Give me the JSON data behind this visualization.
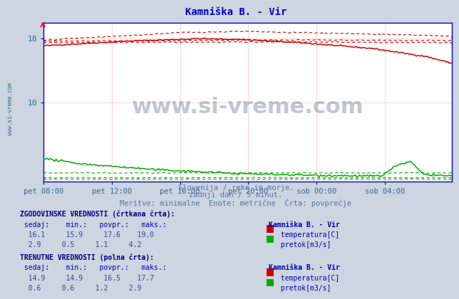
{
  "title": "Kamniška B. - Vir",
  "title_color": "#0000cc",
  "bg_color": "#ccd5e0",
  "plot_bg_color": "#ffffff",
  "subtitle1": "Slovenija / reke in morje.",
  "subtitle2": "zadnji dan / 5 minut.",
  "subtitle3": "Meritve: minimalne  Enote: metrične  Črta: povprečje",
  "subtitle_color": "#5577aa",
  "watermark": "www.si-vreme.com",
  "xticklabels": [
    "pet 08:00",
    "pet 12:00",
    "pet 16:00",
    "pet 20:00",
    "sob 00:00",
    "sob 04:00"
  ],
  "ymin": 0,
  "ymax": 20,
  "xmin": 0,
  "xmax": 287,
  "temp_color": "#cc0000",
  "flow_color": "#00aa00",
  "grid_color": "#ffcccc",
  "grid_color_v": "#ffcccc",
  "table_header_color": "#000080",
  "table_label_color": "#0000bb",
  "table_value_color": "#334499",
  "hist_sedaj": 16.1,
  "hist_min": 15.9,
  "hist_povpr": 17.6,
  "hist_maks": 19.0,
  "hist_flow_sedaj": 2.9,
  "hist_flow_min": 0.5,
  "hist_flow_povpr": 1.1,
  "hist_flow_maks": 4.2,
  "cur_sedaj": 14.9,
  "cur_min": 14.9,
  "cur_povpr": 16.5,
  "cur_maks": 17.7,
  "cur_flow_sedaj": 0.6,
  "cur_flow_min": 0.6,
  "cur_flow_povpr": 1.2,
  "cur_flow_maks": 2.9,
  "watermark_color": "#1a3a6a",
  "axis_color": "#0000cc",
  "tick_color": "#336699",
  "sidewatermark_color": "#336699"
}
